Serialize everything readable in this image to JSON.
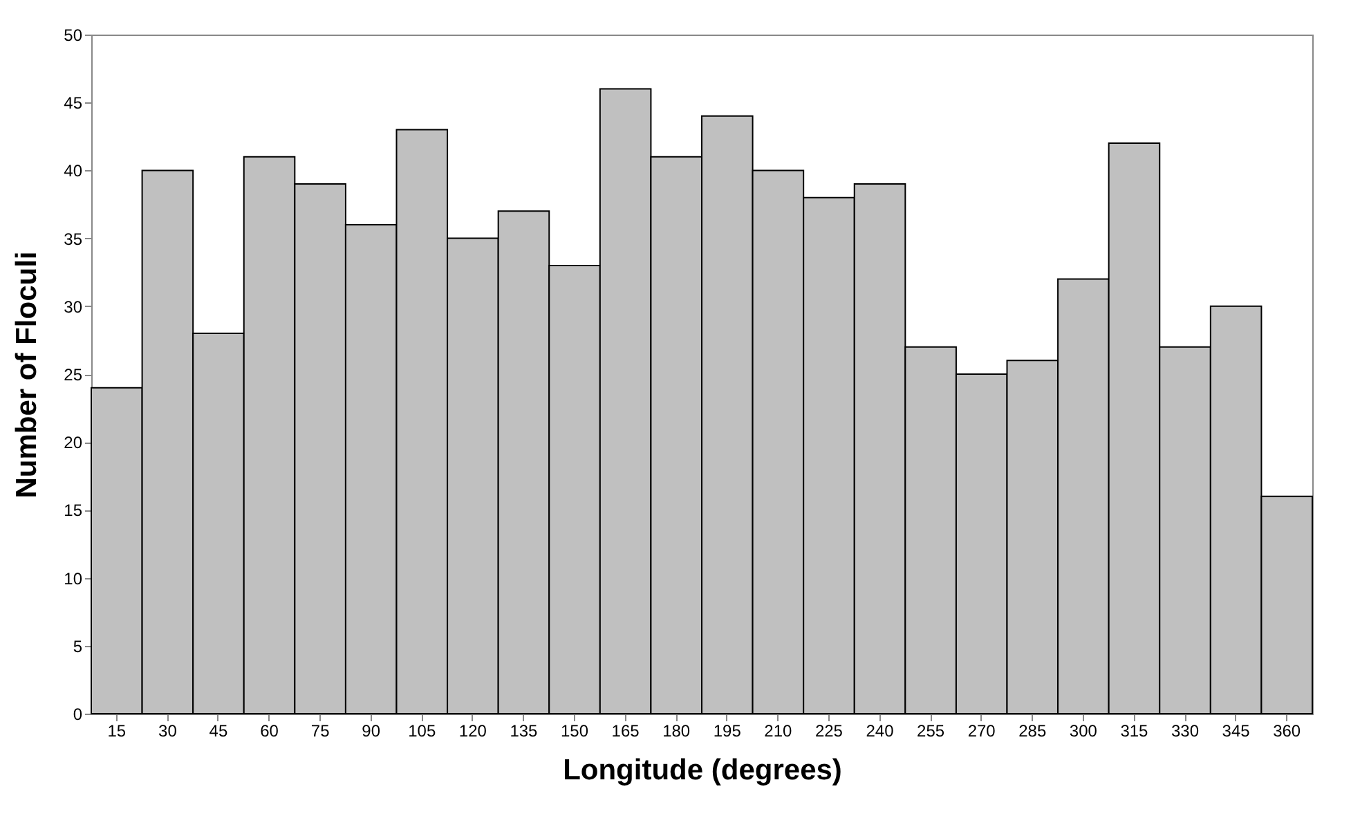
{
  "chart_data": {
    "type": "bar",
    "xlabel": "Longitude (degrees)",
    "ylabel": "Number of Floculi",
    "categories": [
      "15",
      "30",
      "45",
      "60",
      "75",
      "90",
      "105",
      "120",
      "135",
      "150",
      "165",
      "180",
      "195",
      "210",
      "225",
      "240",
      "255",
      "270",
      "285",
      "300",
      "315",
      "330",
      "345",
      "360"
    ],
    "values": [
      24,
      40,
      28,
      41,
      39,
      36,
      43,
      35,
      37,
      33,
      46,
      41,
      44,
      40,
      38,
      39,
      27,
      25,
      26,
      32,
      42,
      27,
      30,
      16
    ],
    "color": "#c0c0c0",
    "ylim": [
      0,
      50
    ],
    "yticks": [
      0,
      5,
      10,
      15,
      20,
      25,
      30,
      35,
      40,
      45,
      50
    ],
    "grid": false
  }
}
